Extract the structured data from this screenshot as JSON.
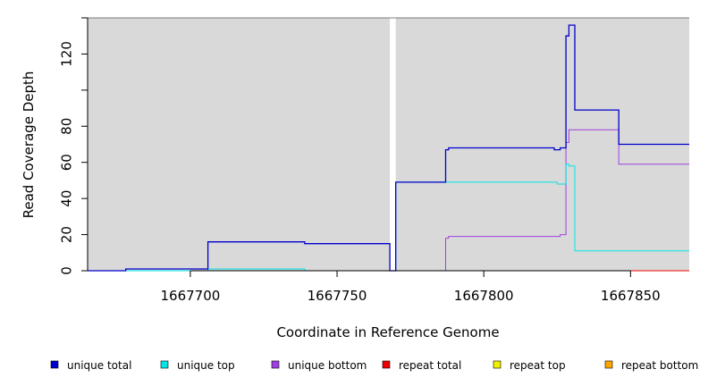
{
  "chart_data": {
    "type": "line",
    "title": "",
    "xlabel": "Coordinate in Reference Genome",
    "ylabel": "Read Coverage Depth",
    "xlim": [
      1667665,
      1667870
    ],
    "ylim": [
      0,
      140
    ],
    "x_ticks": [
      1667700,
      1667750,
      1667800,
      1667850
    ],
    "x_tick_labels": [
      "1667700",
      "1667750",
      "1667800",
      "1667850"
    ],
    "y_ticks": [
      0,
      20,
      40,
      60,
      80,
      100,
      120,
      140
    ],
    "y_tick_labels": [
      "0",
      "20",
      "40",
      "60",
      "80",
      "",
      "120",
      ""
    ],
    "grid": false,
    "legend_position": "bottom",
    "shaded_regions": [
      {
        "from": 1667665,
        "to": 1667768,
        "color": "#d9d9d9"
      },
      {
        "from": 1667770,
        "to": 1667870,
        "color": "#d9d9d9"
      }
    ],
    "series": [
      {
        "name": "unique total",
        "color": "#0000cc",
        "points": [
          [
            1667665,
            0
          ],
          [
            1667678,
            0
          ],
          [
            1667678,
            1
          ],
          [
            1667706,
            1
          ],
          [
            1667706,
            16
          ],
          [
            1667739,
            16
          ],
          [
            1667739,
            15
          ],
          [
            1667768,
            15
          ],
          [
            1667768,
            0
          ],
          [
            1667770,
            0
          ],
          [
            1667770,
            49
          ],
          [
            1667787,
            49
          ],
          [
            1667787,
            67
          ],
          [
            1667788,
            67
          ],
          [
            1667788,
            68
          ],
          [
            1667824,
            68
          ],
          [
            1667824,
            67
          ],
          [
            1667826,
            67
          ],
          [
            1667826,
            68
          ],
          [
            1667828,
            68
          ],
          [
            1667828,
            130
          ],
          [
            1667829,
            130
          ],
          [
            1667829,
            136
          ],
          [
            1667831,
            136
          ],
          [
            1667831,
            89
          ],
          [
            1667846,
            89
          ],
          [
            1667846,
            70
          ],
          [
            1667870,
            70
          ]
        ]
      },
      {
        "name": "unique top",
        "color": "#00e5e5",
        "points": [
          [
            1667665,
            0
          ],
          [
            1667706,
            0
          ],
          [
            1667706,
            1
          ],
          [
            1667739,
            1
          ],
          [
            1667739,
            0
          ],
          [
            1667768,
            0
          ],
          [
            1667770,
            0
          ],
          [
            1667770,
            49
          ],
          [
            1667825,
            49
          ],
          [
            1667825,
            48
          ],
          [
            1667828,
            48
          ],
          [
            1667828,
            59
          ],
          [
            1667829,
            59
          ],
          [
            1667829,
            58
          ],
          [
            1667831,
            58
          ],
          [
            1667831,
            11
          ],
          [
            1667870,
            11
          ]
        ]
      },
      {
        "name": "unique bottom",
        "color": "#a040e0",
        "points": [
          [
            1667665,
            0
          ],
          [
            1667787,
            0
          ],
          [
            1667787,
            18
          ],
          [
            1667788,
            18
          ],
          [
            1667788,
            19
          ],
          [
            1667826,
            19
          ],
          [
            1667826,
            20
          ],
          [
            1667828,
            20
          ],
          [
            1667828,
            71
          ],
          [
            1667829,
            71
          ],
          [
            1667829,
            78
          ],
          [
            1667846,
            78
          ],
          [
            1667846,
            59
          ],
          [
            1667870,
            59
          ]
        ]
      },
      {
        "name": "repeat total",
        "color": "#ee0000",
        "points": [
          [
            1667665,
            0
          ],
          [
            1667870,
            0
          ]
        ]
      },
      {
        "name": "repeat top",
        "color": "#f0f000",
        "points": [
          [
            1667665,
            0
          ],
          [
            1667870,
            0
          ]
        ]
      },
      {
        "name": "repeat bottom",
        "color": "#ffa500",
        "points": [
          [
            1667665,
            0
          ],
          [
            1667870,
            0
          ]
        ]
      }
    ]
  }
}
